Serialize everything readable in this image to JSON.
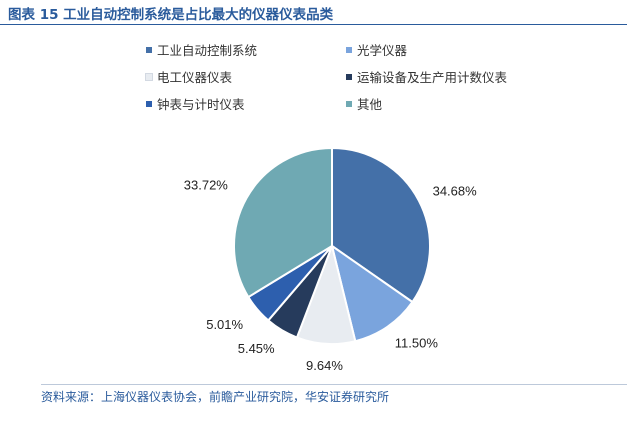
{
  "figure": {
    "title": "图表 15 工业自动控制系统是占比最大的仪器仪表品类",
    "source": "资料来源：上海仪器仪表协会，前瞻产业研究院，华安证券研究所"
  },
  "chart_data": {
    "type": "pie",
    "start_angle_deg": 0,
    "direction": "clockwise",
    "legend_position": "top",
    "slices": [
      {
        "name": "工业自动控制系统",
        "value": 34.68,
        "label": "34.68%",
        "color": "#4470a8"
      },
      {
        "name": "光学仪器",
        "value": 11.5,
        "label": "11.50%",
        "color": "#7aa4dd"
      },
      {
        "name": "电工仪器仪表",
        "value": 9.64,
        "label": "9.64%",
        "color": "#e8ecf1"
      },
      {
        "name": "运输设备及生产用计数仪表",
        "value": 5.45,
        "label": "5.45%",
        "color": "#263b5c"
      },
      {
        "name": "钟表与计时仪表",
        "value": 5.01,
        "label": "5.01%",
        "color": "#2d5fae"
      },
      {
        "name": "其他",
        "value": 33.72,
        "label": "33.72%",
        "color": "#6fa9b3"
      }
    ]
  }
}
